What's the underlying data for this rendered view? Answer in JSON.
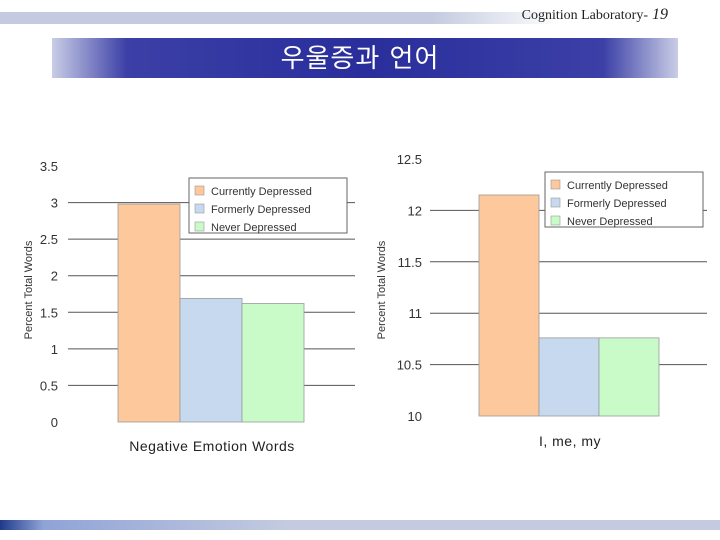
{
  "header": {
    "lab": "Cognition Laboratory-",
    "page_number": "19"
  },
  "slide": {
    "title": "우울증과 언어"
  },
  "colors": {
    "currently": "#fdc89b",
    "formerly": "#c6d9ef",
    "never": "#c9fbc9"
  },
  "chart_data": [
    {
      "type": "bar",
      "categories": [
        "Negative Emotion Words"
      ],
      "xlabel": "Negative Emotion Words",
      "ylabel": "Percent Total Words",
      "ylim": [
        0,
        3.5
      ],
      "yticks": [
        "0",
        "0.5",
        "1",
        "1.5",
        "2",
        "2.5",
        "3",
        "3.5"
      ],
      "yvalues": [
        0,
        0.5,
        1,
        1.5,
        2,
        2.5,
        3,
        3.5
      ],
      "legend_position": "top-right",
      "series": [
        {
          "name": "Currently Depressed",
          "values": [
            2.98
          ],
          "color": "#fdc89b"
        },
        {
          "name": "Formerly Depressed",
          "values": [
            1.69
          ],
          "color": "#c6d9ef"
        },
        {
          "name": "Never Depressed",
          "values": [
            1.62
          ],
          "color": "#c9fbc9"
        }
      ]
    },
    {
      "type": "bar",
      "categories": [
        "I, me, my"
      ],
      "xlabel": "I, me, my",
      "ylabel": "Percent Total Words",
      "ylim": [
        10,
        12.5
      ],
      "yticks": [
        "10",
        "10.5",
        "11",
        "11.5",
        "12",
        "12.5"
      ],
      "yvalues": [
        10,
        10.5,
        11,
        11.5,
        12,
        12.5
      ],
      "legend_position": "top-right",
      "series": [
        {
          "name": "Currently Depressed",
          "values": [
            12.15
          ],
          "color": "#fdc89b"
        },
        {
          "name": "Formerly Depressed",
          "values": [
            10.76
          ],
          "color": "#c6d9ef"
        },
        {
          "name": "Never Depressed",
          "values": [
            10.76
          ],
          "color": "#c9fbc9"
        }
      ]
    }
  ]
}
